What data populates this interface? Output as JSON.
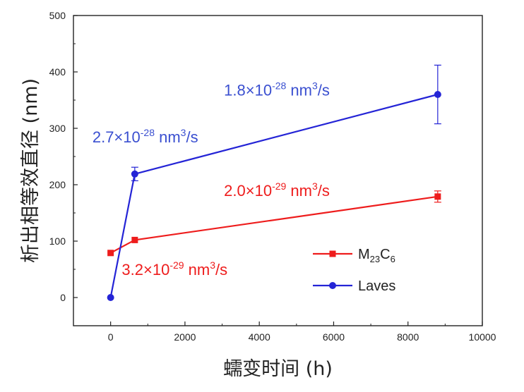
{
  "chart_data": {
    "type": "line",
    "xlabel": "蠕变时间 (h)",
    "ylabel": "析出相等效直径 (nm)",
    "xlim": [
      -1000,
      10000
    ],
    "ylim": [
      -50,
      500
    ],
    "xticks": [
      0,
      2000,
      4000,
      6000,
      8000,
      10000
    ],
    "yticks": [
      0,
      100,
      200,
      300,
      400,
      500
    ],
    "grid": false,
    "legend_position": "bottom-right",
    "series": [
      {
        "name": "M23C6",
        "legend_label": {
          "base": "M",
          "sub1": "23",
          "mid": "C",
          "sub2": "6"
        },
        "color": "#ee1c1c",
        "marker": "square",
        "x": [
          0,
          650,
          8800
        ],
        "y": [
          79,
          102,
          179
        ],
        "error": [
          0,
          0,
          10
        ]
      },
      {
        "name": "Laves",
        "legend_label": {
          "base": "Laves",
          "sub1": "",
          "mid": "",
          "sub2": ""
        },
        "color": "#2424d6",
        "marker": "circle",
        "x": [
          0,
          650,
          8800
        ],
        "y": [
          0,
          219,
          360
        ],
        "error": [
          0,
          12,
          52
        ]
      }
    ],
    "annotations": [
      {
        "series": 1,
        "coef": "1.8×10",
        "exp": "-28",
        "unit": " nm",
        "unit_exp": "3",
        "unit_tail": "/s",
        "color": "#3a4fd0",
        "x": 3050,
        "y": 358
      },
      {
        "series": 1,
        "coef": "2.7×10",
        "exp": "-28",
        "unit": " nm",
        "unit_exp": "3",
        "unit_tail": "/s",
        "color": "#3a4fd0",
        "x": -490,
        "y": 275
      },
      {
        "series": 0,
        "coef": "2.0×10",
        "exp": "-29",
        "unit": " nm",
        "unit_exp": "3",
        "unit_tail": "/s",
        "color": "#ee1c1c",
        "x": 3050,
        "y": 180
      },
      {
        "series": 0,
        "coef": "3.2×10",
        "exp": "-29",
        "unit": " nm",
        "unit_exp": "3",
        "unit_tail": "/s",
        "color": "#ee1c1c",
        "x": 300,
        "y": 40
      }
    ]
  }
}
